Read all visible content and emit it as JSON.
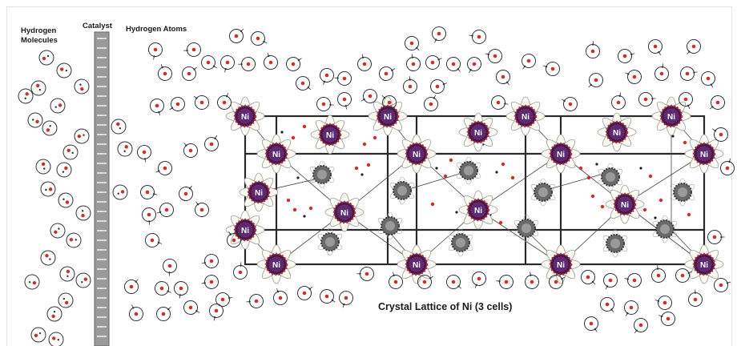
{
  "labels": {
    "hydrogen_molecules_line1": "Hydrogen",
    "hydrogen_molecules_line2": "Molecules",
    "catalyst": "Catalyst",
    "hydrogen_atoms": "Hydrogen Atoms",
    "lattice_caption": "Crystal Lattice of Ni (3 cells)",
    "nickel_symbol": "Ni"
  },
  "colors": {
    "nickel_core": "#3a1a57",
    "nickel_nucleus_dots": "#c0262b",
    "hydrogen_proton": "#d32a2a",
    "electron_orbit": "#333333",
    "lattice_line": "#2a2a2a",
    "catalyst_fill": "#9a9a9a",
    "interstitial_atom": "#6a6a6a"
  },
  "diagram": {
    "lattice_cells": 3,
    "element": "Ni"
  }
}
